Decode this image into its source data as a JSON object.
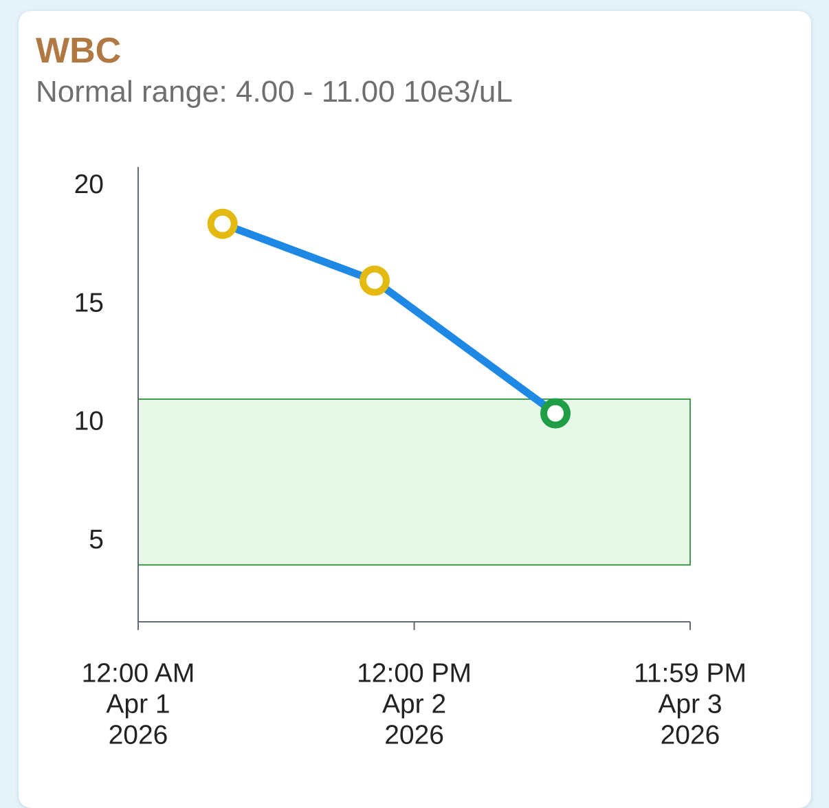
{
  "chart_data": {
    "type": "line",
    "title": "WBC",
    "subtitle": "Normal range: 4.00 - 11.00 10e3/uL",
    "x": [
      "2026-04-01T11:00",
      "2026-04-02T06:50",
      "2026-04-03T06:25"
    ],
    "series": [
      {
        "values": [
          18.4,
          16.0,
          10.4
        ],
        "color": "#1e88e5",
        "marker_colors": [
          "#e3b912",
          "#e3b912",
          "#1f9e45"
        ]
      }
    ],
    "normal_range": [
      4,
      11
    ],
    "normal_range_color": "#e7f7e8",
    "normal_range_edge": "#3c9a4c",
    "xlim": [
      "2026-04-01T00:00",
      "2026-04-03T23:59"
    ],
    "xticks": [
      {
        "value": "2026-04-01T00:00",
        "label": [
          "12:00 AM",
          "Apr 1",
          "2026"
        ]
      },
      {
        "value": "2026-04-02T12:00",
        "label": [
          "12:00 PM",
          "Apr 2",
          "2026"
        ]
      },
      {
        "value": "2026-04-03T23:59",
        "label": [
          "11:59 PM",
          "Apr 3",
          "2026"
        ]
      }
    ],
    "ylim": [
      1.6,
      20.8
    ],
    "yticks": [
      5,
      10,
      15,
      20
    ]
  }
}
